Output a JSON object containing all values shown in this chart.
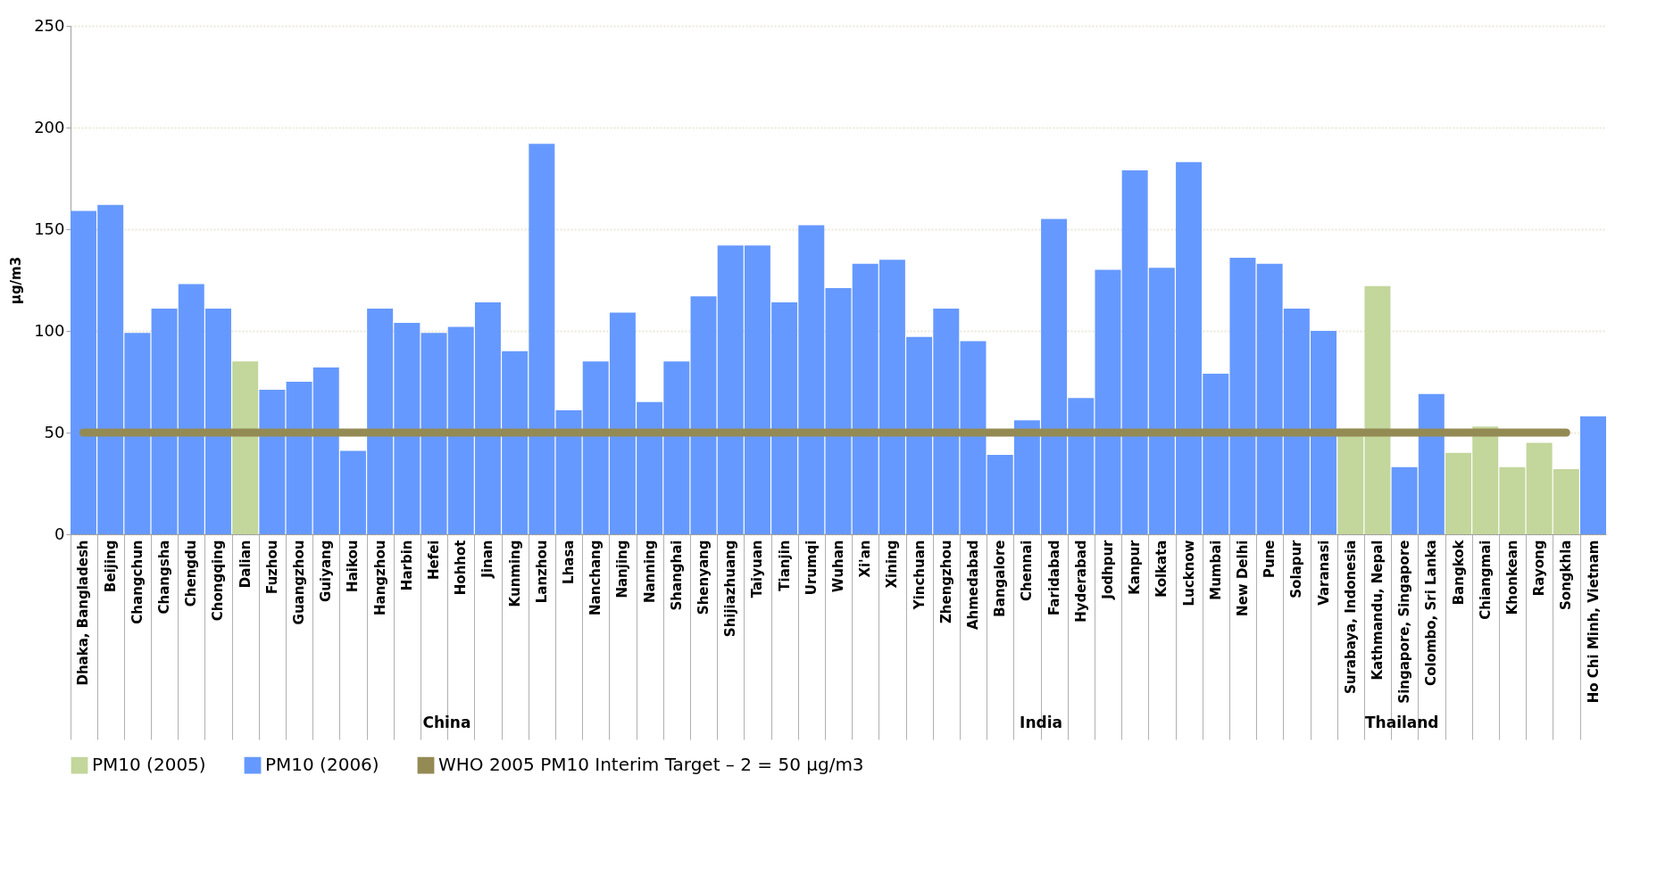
{
  "chart_data": {
    "type": "bar",
    "ylabel": "μg/m3",
    "categories": [
      "Dhaka, Bangladesh",
      "Beijing",
      "Changchun",
      "Changsha",
      "Chengdu",
      "Chongqing",
      "Dalian",
      "Fuzhou",
      "Guangzhou",
      "Guiyang",
      "Haikou",
      "Hangzhou",
      "Harbin",
      "Hefei",
      "Hohhot",
      "Jinan",
      "Kunming",
      "Lanzhou",
      "Lhasa",
      "Nanchang",
      "Nanjing",
      "Nanning",
      "Shanghai",
      "Shenyang",
      "Shijiazhuang",
      "Taiyuan",
      "Tianjin",
      "Urumqi",
      "Wuhan",
      "Xi'an",
      "Xining",
      "Yinchuan",
      "Zhengzhou",
      "Ahmedabad",
      "Bangalore",
      "Chennai",
      "Faridabad",
      "Hyderabad",
      "Jodhpur",
      "Kanpur",
      "Kolkata",
      "Lucknow",
      "Mumbai",
      "New Delhi",
      "Pune",
      "Solapur",
      "Varanasi",
      "Surabaya, Indonesia",
      "Kathmandu, Nepal",
      "Singapore, Singapore",
      "Colombo, Sri Lanka",
      "Bangkok",
      "Chiangmai",
      "Khonkean",
      "Rayong",
      "Songkhla",
      "Ho Chi Minh, Vietnam"
    ],
    "series": [
      {
        "name": "PM10 (2005)",
        "color": "#c3d69b",
        "values": [
          null,
          null,
          null,
          null,
          null,
          null,
          85,
          null,
          null,
          null,
          null,
          null,
          null,
          null,
          null,
          null,
          null,
          null,
          null,
          null,
          null,
          null,
          null,
          null,
          null,
          null,
          null,
          null,
          null,
          null,
          null,
          null,
          null,
          null,
          null,
          null,
          null,
          null,
          null,
          null,
          null,
          null,
          null,
          null,
          null,
          null,
          null,
          52,
          122,
          null,
          null,
          40,
          53,
          33,
          45,
          32,
          null
        ]
      },
      {
        "name": "PM10 (2006)",
        "color": "#6699ff",
        "values": [
          159,
          162,
          99,
          111,
          123,
          111,
          null,
          71,
          75,
          82,
          41,
          111,
          104,
          99,
          102,
          114,
          90,
          192,
          61,
          85,
          109,
          65,
          85,
          117,
          142,
          142,
          114,
          152,
          121,
          133,
          135,
          97,
          111,
          95,
          39,
          56,
          155,
          67,
          130,
          179,
          131,
          183,
          79,
          136,
          133,
          111,
          100,
          null,
          null,
          33,
          69,
          null,
          null,
          null,
          null,
          null,
          58
        ]
      },
      {
        "name": "WHO 2005 PM10 Interim Target – 2 = 50 μg/m3",
        "type": "line",
        "color": "#948a54",
        "values": [
          50,
          50,
          50,
          50,
          50,
          50,
          50,
          50,
          50,
          50,
          50,
          50,
          50,
          50,
          50,
          50,
          50,
          50,
          50,
          50,
          50,
          50,
          50,
          50,
          50,
          50,
          50,
          50,
          50,
          50,
          50,
          50,
          50,
          50,
          50,
          50,
          50,
          50,
          50,
          50,
          50,
          50,
          50,
          50,
          50,
          50,
          50,
          50,
          50,
          50,
          50,
          50,
          50,
          50,
          50,
          50,
          null
        ]
      }
    ],
    "ylim": [
      0,
      250
    ],
    "yticks": [
      0,
      50,
      100,
      150,
      200,
      250
    ],
    "grid": "y",
    "legend": "bottom",
    "annotations": [
      "China",
      "India",
      "Thailand"
    ]
  }
}
